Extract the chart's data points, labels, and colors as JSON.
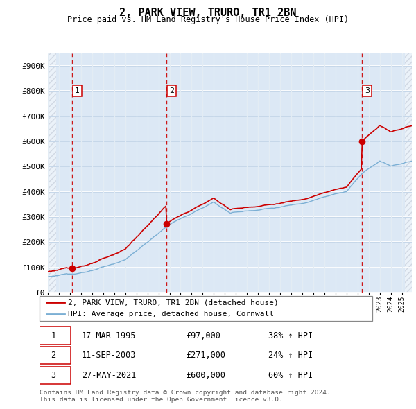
{
  "title": "2, PARK VIEW, TRURO, TR1 2BN",
  "subtitle": "Price paid vs. HM Land Registry's House Price Index (HPI)",
  "ylabel_ticks": [
    "£0",
    "£100K",
    "£200K",
    "£300K",
    "£400K",
    "£500K",
    "£600K",
    "£700K",
    "£800K",
    "£900K"
  ],
  "ytick_values": [
    0,
    100000,
    200000,
    300000,
    400000,
    500000,
    600000,
    700000,
    800000,
    900000
  ],
  "ylim": [
    0,
    950000
  ],
  "xlim_start": 1993.0,
  "xlim_end": 2025.9,
  "sale_dates": [
    1995.21,
    2003.71,
    2021.41
  ],
  "sale_prices": [
    97000,
    271000,
    600000
  ],
  "sale_labels": [
    "1",
    "2",
    "3"
  ],
  "hpi_line_color": "#7bafd4",
  "price_line_color": "#cc0000",
  "sale_dot_color": "#cc0000",
  "vline_color": "#cc0000",
  "grid_color": "#adc6e0",
  "bg_color": "#dce8f5",
  "legend_entries": [
    "2, PARK VIEW, TRURO, TR1 2BN (detached house)",
    "HPI: Average price, detached house, Cornwall"
  ],
  "table_rows": [
    [
      "1",
      "17-MAR-1995",
      "£97,000",
      "38% ↑ HPI"
    ],
    [
      "2",
      "11-SEP-2003",
      "£271,000",
      "24% ↑ HPI"
    ],
    [
      "3",
      "27-MAY-2021",
      "£600,000",
      "60% ↑ HPI"
    ]
  ],
  "footnote": "Contains HM Land Registry data © Crown copyright and database right 2024.\nThis data is licensed under the Open Government Licence v3.0."
}
